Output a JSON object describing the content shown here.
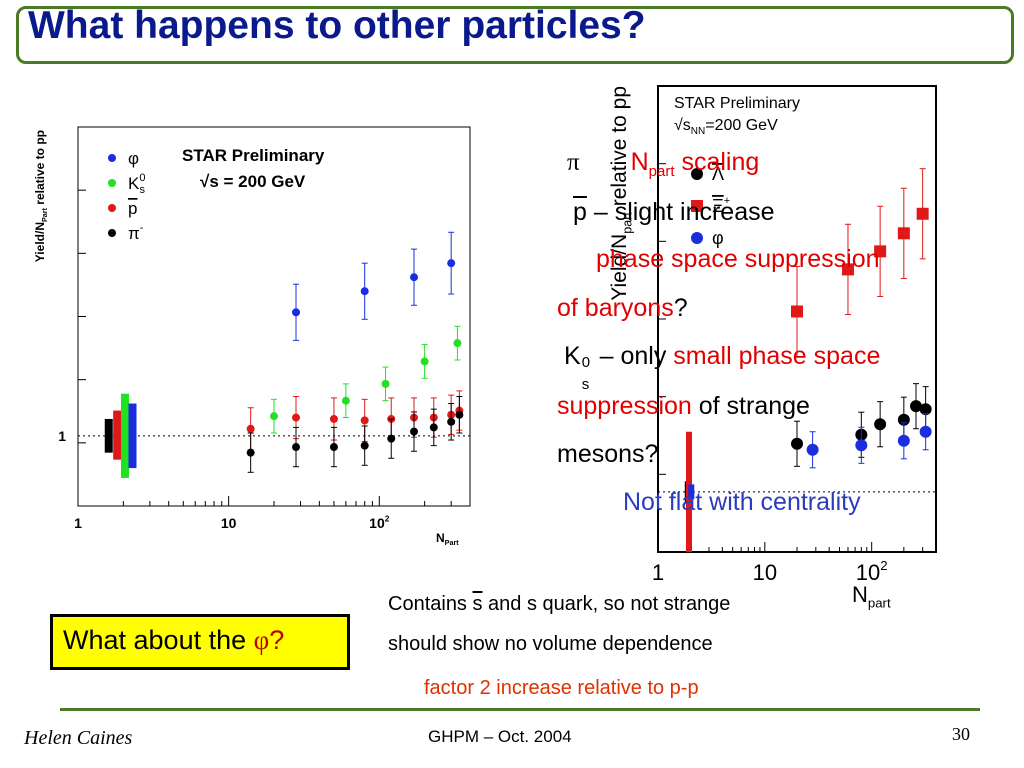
{
  "slide": {
    "title": "What happens to other particles?",
    "author": "Helen Caines",
    "conference": "GHPM – Oct. 2004",
    "page_number": "30"
  },
  "bullets": {
    "pi_symbol": "π",
    "npart_scaling_pre": "N",
    "npart_scaling_sub": "part",
    "npart_scaling_post": " scaling",
    "pbar_symbol": "p",
    "pbar_text": " – slight increase",
    "phase_line1": "phase space suppression",
    "phase_line2": "of baryons",
    "phase_qmark": "?",
    "k0_pre": "K",
    "k0_sup": "0",
    "k0_sub": "s",
    "k0_mid": " – only ",
    "k0_red": "small phase space",
    "supp_red": "suppression",
    "supp_black": " of strange",
    "mesons": "mesons?",
    "not_flat": "Not flat with centrality"
  },
  "callout": {
    "text_pre": "What about the ",
    "phi": "φ",
    "qmark": "?"
  },
  "notes": {
    "line1_pre": "Contains ",
    "sbar": "s",
    "line1_post": " and s quark, so not strange",
    "line2": "should show no volume dependence",
    "line3": "factor 2 increase relative to p-p"
  },
  "chart_data": [
    {
      "type": "scatter",
      "title": "STAR Preliminary",
      "subtitle": "√s = 200 GeV",
      "xlabel": "N",
      "xlabel_sub": "Part",
      "ylabel": "Yield/N",
      "ylabel_sub": "Part",
      "ylabel_post": " relative to pp",
      "x_scale": "log",
      "xlim": [
        1,
        400
      ],
      "ylim": [
        0.5,
        3.2
      ],
      "x_ticks": [
        {
          "value": 1,
          "label": "1"
        },
        {
          "value": 10,
          "label": "10"
        },
        {
          "value": 100,
          "label": "10",
          "sup": "2"
        }
      ],
      "y_ticks": [
        {
          "value": 1,
          "label": "1"
        }
      ],
      "reference_line": 1,
      "legend_position": "top-left",
      "series": [
        {
          "name": "φ",
          "color": "#1a2ee0",
          "points": [
            {
              "x": 28,
              "y": 1.88,
              "e": 0.2
            },
            {
              "x": 80,
              "y": 2.03,
              "e": 0.2
            },
            {
              "x": 170,
              "y": 2.13,
              "e": 0.2
            },
            {
              "x": 300,
              "y": 2.23,
              "e": 0.22
            }
          ]
        },
        {
          "name": "K",
          "name_sup": "0",
          "name_sub": "s",
          "color": "#22e022",
          "points": [
            {
              "x": 20,
              "y": 1.14,
              "e": 0.12
            },
            {
              "x": 60,
              "y": 1.25,
              "e": 0.12
            },
            {
              "x": 110,
              "y": 1.37,
              "e": 0.12
            },
            {
              "x": 200,
              "y": 1.53,
              "e": 0.12
            },
            {
              "x": 330,
              "y": 1.66,
              "e": 0.12
            }
          ]
        },
        {
          "name": "p",
          "name_overline": true,
          "color": "#e01818",
          "points": [
            {
              "x": 14,
              "y": 1.05,
              "e": 0.15
            },
            {
              "x": 28,
              "y": 1.13,
              "e": 0.15
            },
            {
              "x": 50,
              "y": 1.12,
              "e": 0.15
            },
            {
              "x": 80,
              "y": 1.11,
              "e": 0.15
            },
            {
              "x": 120,
              "y": 1.12,
              "e": 0.15
            },
            {
              "x": 170,
              "y": 1.13,
              "e": 0.14
            },
            {
              "x": 230,
              "y": 1.13,
              "e": 0.14
            },
            {
              "x": 300,
              "y": 1.15,
              "e": 0.14
            },
            {
              "x": 340,
              "y": 1.18,
              "e": 0.14
            }
          ]
        },
        {
          "name": "π",
          "name_sup": "-",
          "color": "#000000",
          "points": [
            {
              "x": 14,
              "y": 0.88,
              "e": 0.14
            },
            {
              "x": 28,
              "y": 0.92,
              "e": 0.14
            },
            {
              "x": 50,
              "y": 0.92,
              "e": 0.14
            },
            {
              "x": 80,
              "y": 0.93,
              "e": 0.14
            },
            {
              "x": 120,
              "y": 0.98,
              "e": 0.14
            },
            {
              "x": 170,
              "y": 1.03,
              "e": 0.14
            },
            {
              "x": 230,
              "y": 1.06,
              "e": 0.13
            },
            {
              "x": 300,
              "y": 1.1,
              "e": 0.13
            },
            {
              "x": 340,
              "y": 1.15,
              "e": 0.13
            }
          ]
        }
      ],
      "normalization_boxes": [
        {
          "color": "#000000",
          "x": 1.6,
          "ylow": 0.88,
          "yhigh": 1.12
        },
        {
          "color": "#e01818",
          "x": 1.82,
          "ylow": 0.83,
          "yhigh": 1.18
        },
        {
          "color": "#22e022",
          "x": 2.05,
          "ylow": 0.7,
          "yhigh": 1.3
        },
        {
          "color": "#1a2ee0",
          "x": 2.3,
          "ylow": 0.77,
          "yhigh": 1.23
        }
      ]
    },
    {
      "type": "scatter",
      "title": "STAR Preliminary",
      "subtitle_pre": "√s",
      "subtitle_sub": "NN",
      "subtitle_post": "=200 GeV",
      "xlabel": "N",
      "xlabel_sub": "part",
      "ylabel": "Yield/N",
      "ylabel_sub": "part",
      "ylabel_post": " relative to pp",
      "x_scale": "log",
      "xlim": [
        1,
        400
      ],
      "ylim": [
        0.6,
        3.7
      ],
      "x_ticks": [
        {
          "value": 1,
          "label": "1"
        },
        {
          "value": 10,
          "label": "10"
        },
        {
          "value": 100,
          "label": "10",
          "sup": "2"
        }
      ],
      "reference_line": 1,
      "legend_position": "top-left",
      "series": [
        {
          "name": "Λ",
          "name_overline": true,
          "color": "#000000",
          "marker": "circle",
          "points": [
            {
              "x": 20,
              "y": 1.32,
              "e": 0.15
            },
            {
              "x": 80,
              "y": 1.38,
              "e": 0.15
            },
            {
              "x": 120,
              "y": 1.45,
              "e": 0.15
            },
            {
              "x": 200,
              "y": 1.48,
              "e": 0.15
            },
            {
              "x": 260,
              "y": 1.57,
              "e": 0.15
            },
            {
              "x": 320,
              "y": 1.55,
              "e": 0.15
            }
          ]
        },
        {
          "name": "Ξ",
          "name_overline": true,
          "name_sup": "+",
          "color": "#e01818",
          "marker": "square",
          "points": [
            {
              "x": 20,
              "y": 2.2,
              "e": 0.3
            },
            {
              "x": 60,
              "y": 2.48,
              "e": 0.3
            },
            {
              "x": 120,
              "y": 2.6,
              "e": 0.3
            },
            {
              "x": 200,
              "y": 2.72,
              "e": 0.3
            },
            {
              "x": 300,
              "y": 2.85,
              "e": 0.3
            }
          ]
        },
        {
          "name": "φ",
          "color": "#1a2ee0",
          "marker": "circle",
          "points": [
            {
              "x": 28,
              "y": 1.28,
              "e": 0.12
            },
            {
              "x": 80,
              "y": 1.31,
              "e": 0.12
            },
            {
              "x": 200,
              "y": 1.34,
              "e": 0.12
            },
            {
              "x": 320,
              "y": 1.4,
              "e": 0.12
            }
          ]
        }
      ],
      "normalization_boxes": [
        {
          "color": "#000000",
          "x": 1.9,
          "ylow": 0.93,
          "yhigh": 1.07
        },
        {
          "color": "#e01818",
          "x": 1.95,
          "ylow": 0.6,
          "yhigh": 1.4
        },
        {
          "color": "#1a2ee0",
          "x": 2.05,
          "ylow": 0.95,
          "yhigh": 1.05
        }
      ]
    }
  ]
}
